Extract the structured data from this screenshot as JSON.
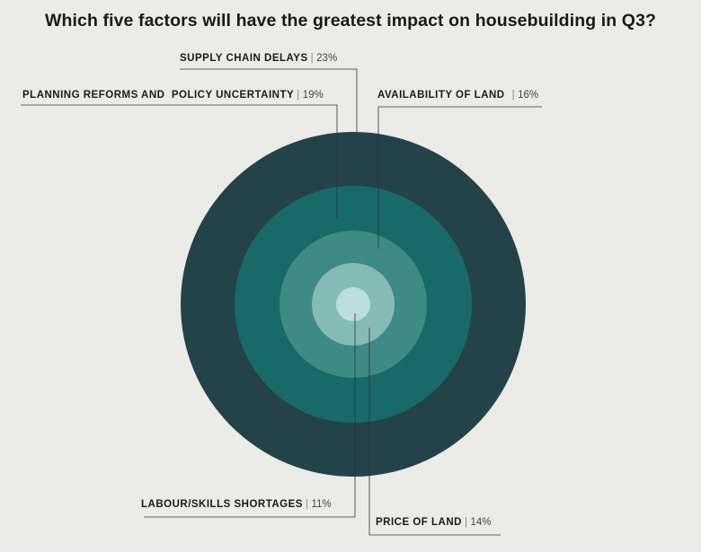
{
  "title": "Which five factors will have the greatest impact on housebuilding in Q3?",
  "chart_data": {
    "type": "concentric-circles",
    "title": "Which five factors will have the greatest impact on housebuilding in Q3?",
    "unit": "%",
    "categories": [
      "Supply chain delays",
      "Planning reforms and policy uncertainty",
      "Availability of land",
      "Price of land",
      "Labour/skills shortages"
    ],
    "items": [
      {
        "label": "SUPPLY CHAIN DELAYS",
        "value": 23,
        "value_text": "23%"
      },
      {
        "label": "PLANNING REFORMS AND  POLICY UNCERTAINTY",
        "value": 19,
        "value_text": "19%"
      },
      {
        "label": "AVAILABILITY OF LAND",
        "value": 16,
        "value_text": "16%"
      },
      {
        "label": "PRICE OF LAND",
        "value": 14,
        "value_text": "14%"
      },
      {
        "label": "LABOUR/SKILLS SHORTAGES",
        "value": 11,
        "value_text": "11%"
      }
    ],
    "ring_colors": [
      "#234349",
      "#176a68",
      "#3e8b85",
      "#85bbb6",
      "#bcdedb"
    ],
    "background": "#ebebe7"
  }
}
